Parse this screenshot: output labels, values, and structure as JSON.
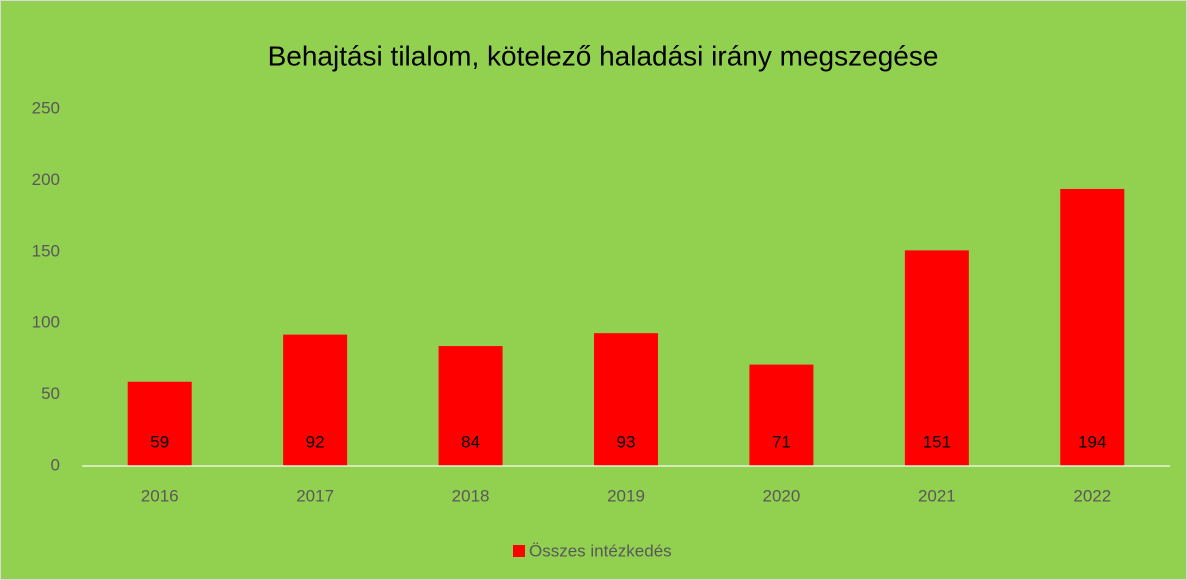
{
  "chart_data": {
    "type": "bar",
    "title": "Behajtási tilalom, kötelező haladási irány megszegése",
    "categories": [
      "2016",
      "2017",
      "2018",
      "2019",
      "2020",
      "2021",
      "2022"
    ],
    "series": [
      {
        "name": "Összes intézkedés",
        "color": "#ff0000",
        "values": [
          59,
          92,
          84,
          93,
          71,
          151,
          194
        ]
      }
    ],
    "ylim": [
      0,
      250
    ],
    "yticks": [
      0,
      50,
      100,
      150,
      200,
      250
    ],
    "grid": false,
    "legend": "bottom",
    "background": "#92d050"
  }
}
